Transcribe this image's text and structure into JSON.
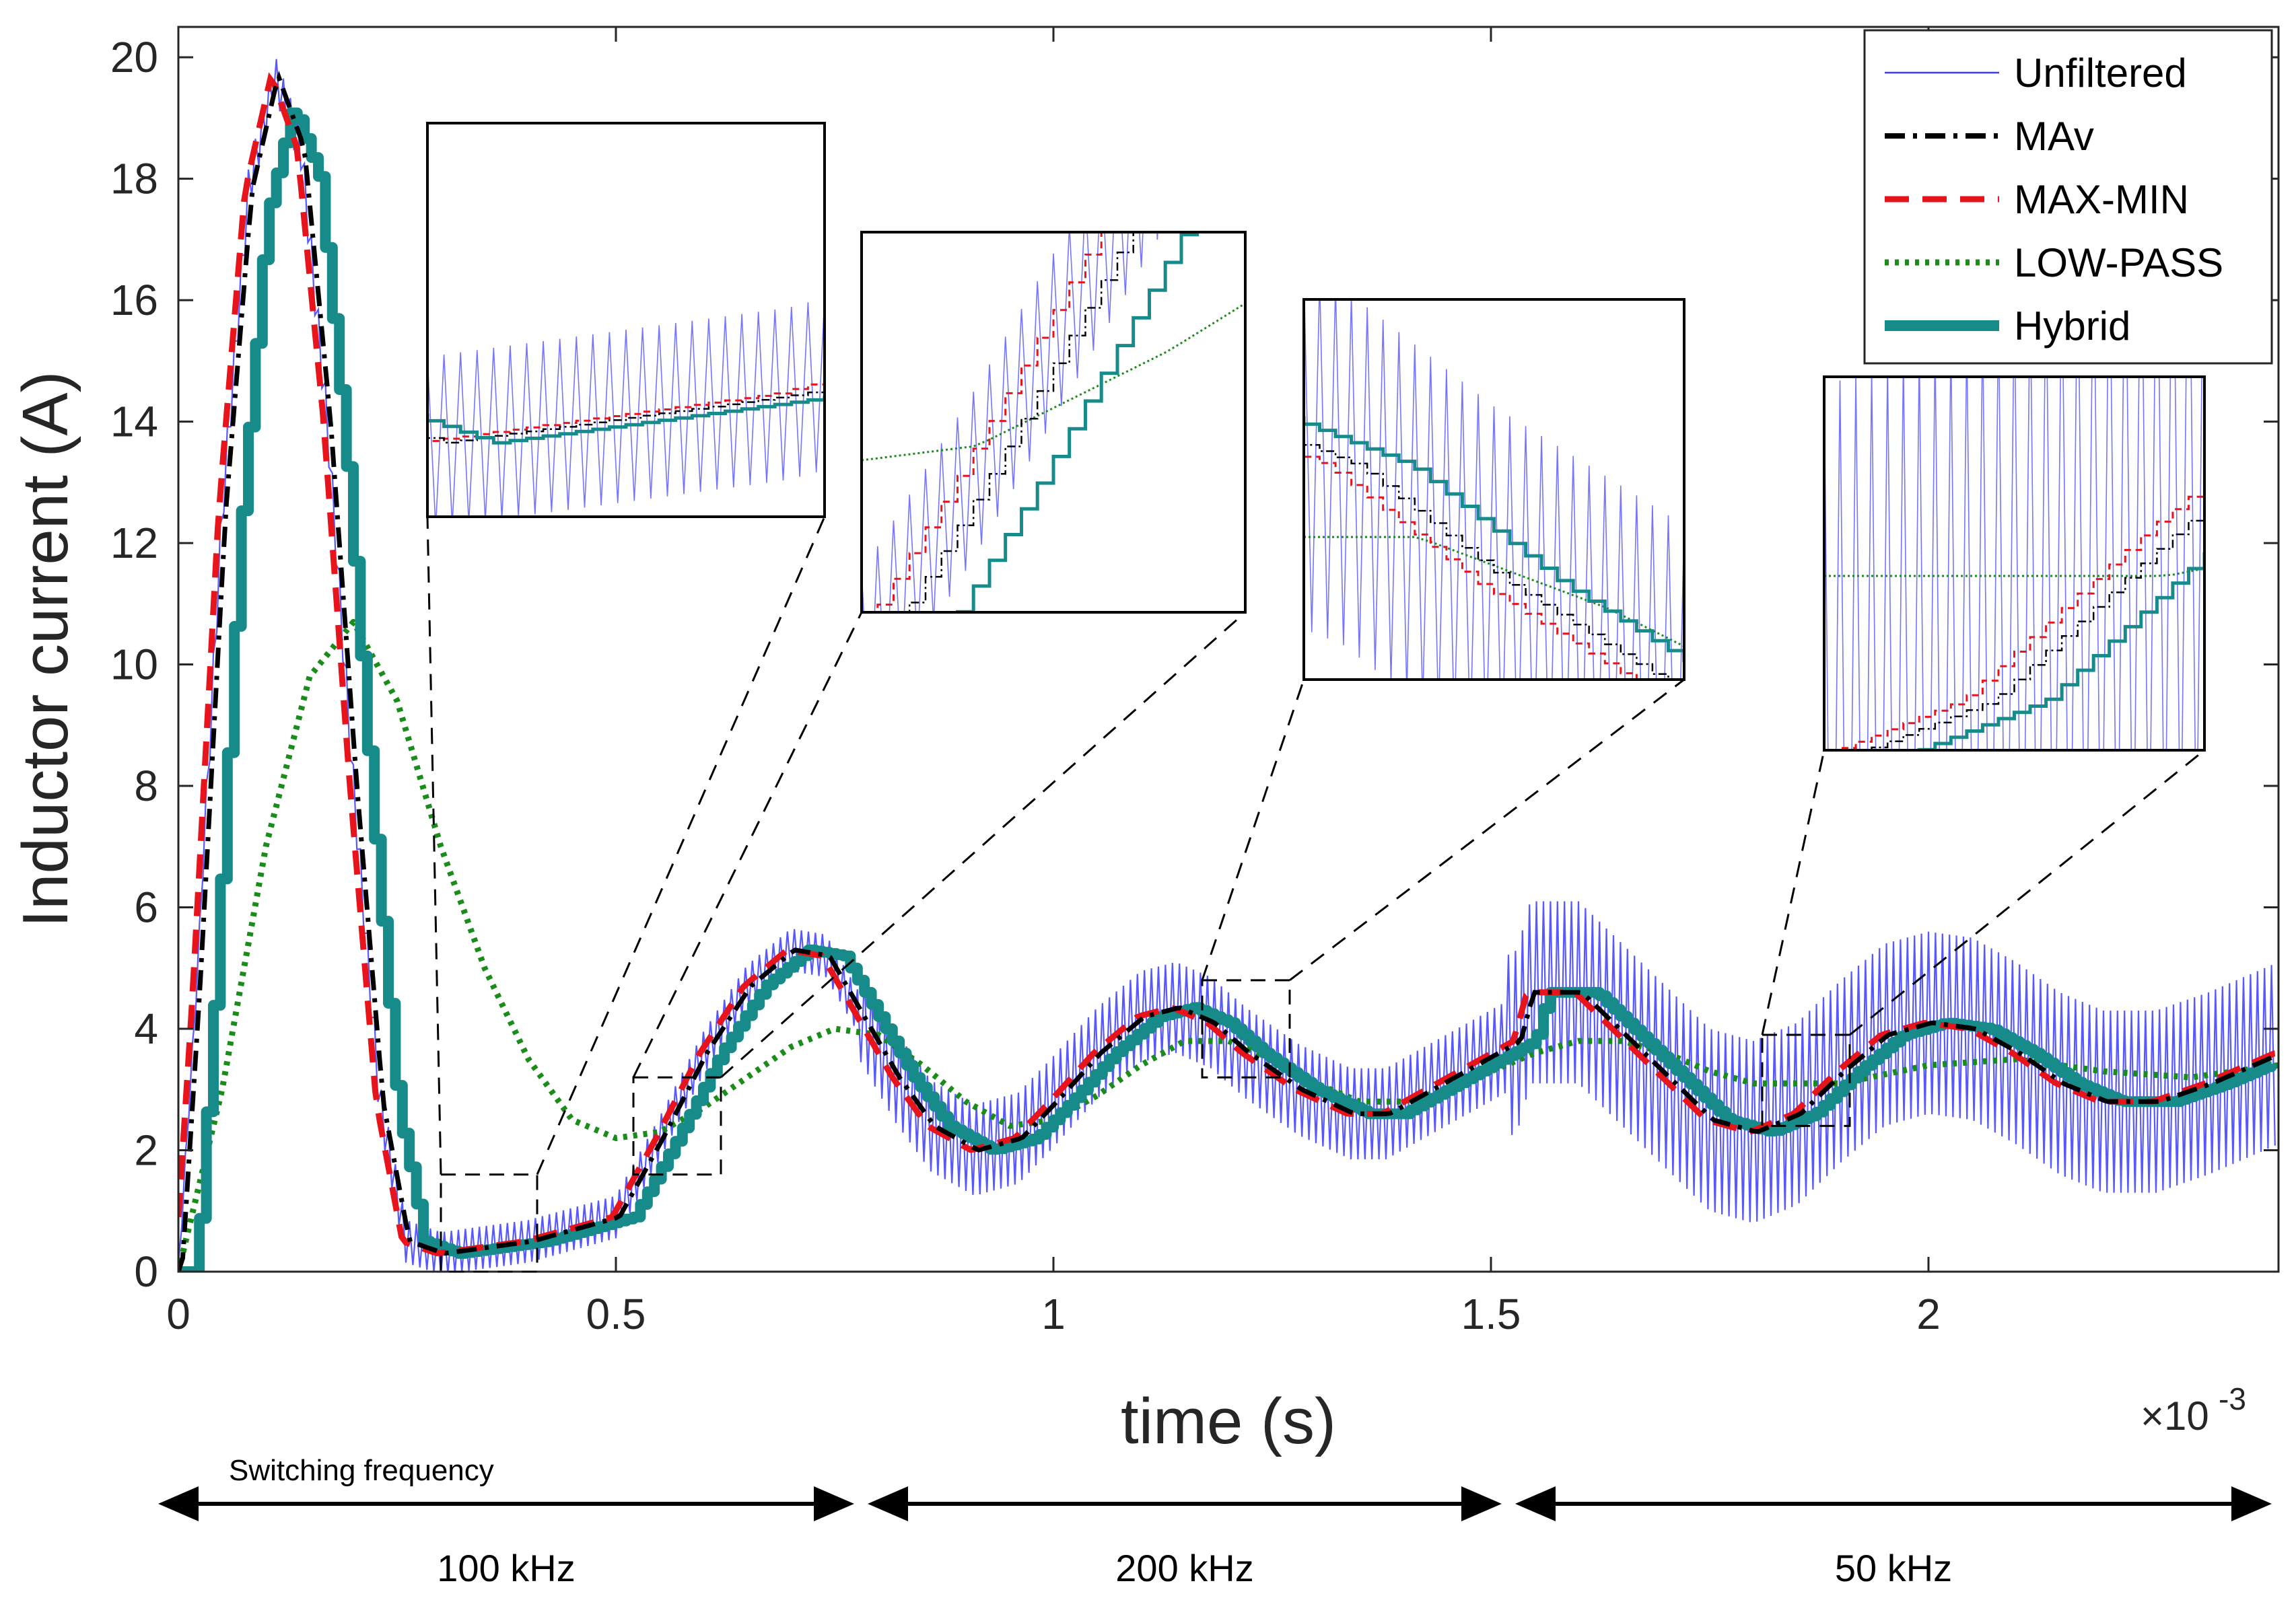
{
  "chart_data": {
    "type": "line",
    "title": "",
    "xlabel": "time (s)",
    "ylabel": "Inductor current (A)",
    "x_multiplier": "×10",
    "x_multiplier_exponent": "-3",
    "xlim": [
      0,
      2.4
    ],
    "ylim": [
      0,
      20.5
    ],
    "xticks": [
      0,
      0.5,
      1,
      1.5,
      2
    ],
    "xtick_labels": [
      "0",
      "0.5",
      "1",
      "1.5",
      "2"
    ],
    "yticks": [
      0,
      2,
      4,
      6,
      8,
      10,
      12,
      14,
      16,
      18,
      20
    ],
    "ytick_labels": [
      "0",
      "2",
      "4",
      "6",
      "8",
      "10",
      "12",
      "14",
      "16",
      "18",
      "20"
    ],
    "grid": false,
    "legend_position": "top-right",
    "series": [
      {
        "name": "Unfiltered",
        "color": "#3b3bff",
        "style": "solid-thin",
        "ripple": [
          0.35,
          0.75,
          1.5
        ]
      },
      {
        "name": "MAv",
        "color": "#000000",
        "style": "dash-dot"
      },
      {
        "name": "MAX-MIN",
        "color": "#e8141b",
        "style": "dashed"
      },
      {
        "name": "LOW-PASS",
        "color": "#1a8c1a",
        "style": "dotted"
      },
      {
        "name": "Hybrid",
        "color": "#178a8a",
        "style": "solid-thick"
      }
    ],
    "underlying_points": [
      [
        0,
        0
      ],
      [
        0.02,
        4.5
      ],
      [
        0.05,
        12.5
      ],
      [
        0.08,
        17.8
      ],
      [
        0.11,
        19.7
      ],
      [
        0.14,
        18.5
      ],
      [
        0.17,
        14.0
      ],
      [
        0.2,
        8.0
      ],
      [
        0.23,
        2.8
      ],
      [
        0.26,
        0.5
      ],
      [
        0.3,
        0.3
      ],
      [
        0.4,
        0.5
      ],
      [
        0.5,
        0.9
      ],
      [
        0.55,
        2.2
      ],
      [
        0.6,
        3.6
      ],
      [
        0.65,
        4.7
      ],
      [
        0.7,
        5.3
      ],
      [
        0.74,
        5.2
      ],
      [
        0.78,
        4.2
      ],
      [
        0.82,
        3.2
      ],
      [
        0.86,
        2.4
      ],
      [
        0.91,
        2.0
      ],
      [
        0.96,
        2.2
      ],
      [
        1.0,
        2.8
      ],
      [
        1.05,
        3.6
      ],
      [
        1.1,
        4.2
      ],
      [
        1.14,
        4.35
      ],
      [
        1.18,
        4.1
      ],
      [
        1.22,
        3.6
      ],
      [
        1.28,
        3.0
      ],
      [
        1.34,
        2.6
      ],
      [
        1.38,
        2.6
      ],
      [
        1.43,
        3.0
      ],
      [
        1.48,
        3.4
      ],
      [
        1.53,
        3.8
      ],
      [
        1.545,
        4.6
      ],
      [
        1.6,
        4.6
      ],
      [
        1.65,
        3.9
      ],
      [
        1.7,
        3.2
      ],
      [
        1.75,
        2.5
      ],
      [
        1.8,
        2.3
      ],
      [
        1.85,
        2.6
      ],
      [
        1.9,
        3.3
      ],
      [
        1.95,
        3.9
      ],
      [
        2.0,
        4.1
      ],
      [
        2.05,
        4.0
      ],
      [
        2.1,
        3.6
      ],
      [
        2.15,
        3.1
      ],
      [
        2.2,
        2.8
      ],
      [
        2.26,
        2.8
      ],
      [
        2.32,
        3.1
      ],
      [
        2.4,
        3.6
      ]
    ],
    "lowpass_points": [
      [
        0,
        0
      ],
      [
        0.05,
        3.0
      ],
      [
        0.1,
        7.0
      ],
      [
        0.15,
        9.8
      ],
      [
        0.2,
        10.7
      ],
      [
        0.25,
        9.4
      ],
      [
        0.3,
        7.0
      ],
      [
        0.35,
        5.0
      ],
      [
        0.4,
        3.5
      ],
      [
        0.45,
        2.5
      ],
      [
        0.5,
        2.2
      ],
      [
        0.55,
        2.3
      ],
      [
        0.6,
        2.7
      ],
      [
        0.65,
        3.2
      ],
      [
        0.7,
        3.7
      ],
      [
        0.75,
        4.0
      ],
      [
        0.8,
        3.9
      ],
      [
        0.85,
        3.4
      ],
      [
        0.9,
        2.8
      ],
      [
        0.95,
        2.4
      ],
      [
        1.0,
        2.5
      ],
      [
        1.05,
        2.9
      ],
      [
        1.1,
        3.4
      ],
      [
        1.15,
        3.8
      ],
      [
        1.2,
        3.8
      ],
      [
        1.25,
        3.5
      ],
      [
        1.3,
        3.1
      ],
      [
        1.35,
        2.8
      ],
      [
        1.4,
        2.8
      ],
      [
        1.45,
        3.0
      ],
      [
        1.5,
        3.3
      ],
      [
        1.55,
        3.6
      ],
      [
        1.6,
        3.8
      ],
      [
        1.65,
        3.8
      ],
      [
        1.7,
        3.6
      ],
      [
        1.75,
        3.3
      ],
      [
        1.8,
        3.1
      ],
      [
        1.9,
        3.1
      ],
      [
        2.0,
        3.4
      ],
      [
        2.1,
        3.5
      ],
      [
        2.2,
        3.3
      ],
      [
        2.3,
        3.2
      ],
      [
        2.4,
        3.4
      ]
    ],
    "zoom_regions": [
      {
        "x": [
          0.3,
          0.41
        ],
        "y": [
          0.0,
          1.6
        ]
      },
      {
        "x": [
          0.52,
          0.62
        ],
        "y": [
          1.6,
          3.2
        ]
      },
      {
        "x": [
          1.17,
          1.27
        ],
        "y": [
          3.2,
          4.8
        ]
      },
      {
        "x": [
          1.81,
          1.91
        ],
        "y": [
          2.4,
          3.9
        ]
      }
    ],
    "frequency_bands": {
      "caption": "Switching frequency",
      "bands": [
        {
          "label": "100 kHz",
          "x_range": [
            0,
            0.78
          ]
        },
        {
          "label": "200 kHz",
          "x_range": [
            0.78,
            1.52
          ]
        },
        {
          "label": "50 kHz",
          "x_range": [
            1.52,
            2.4
          ]
        }
      ]
    }
  }
}
